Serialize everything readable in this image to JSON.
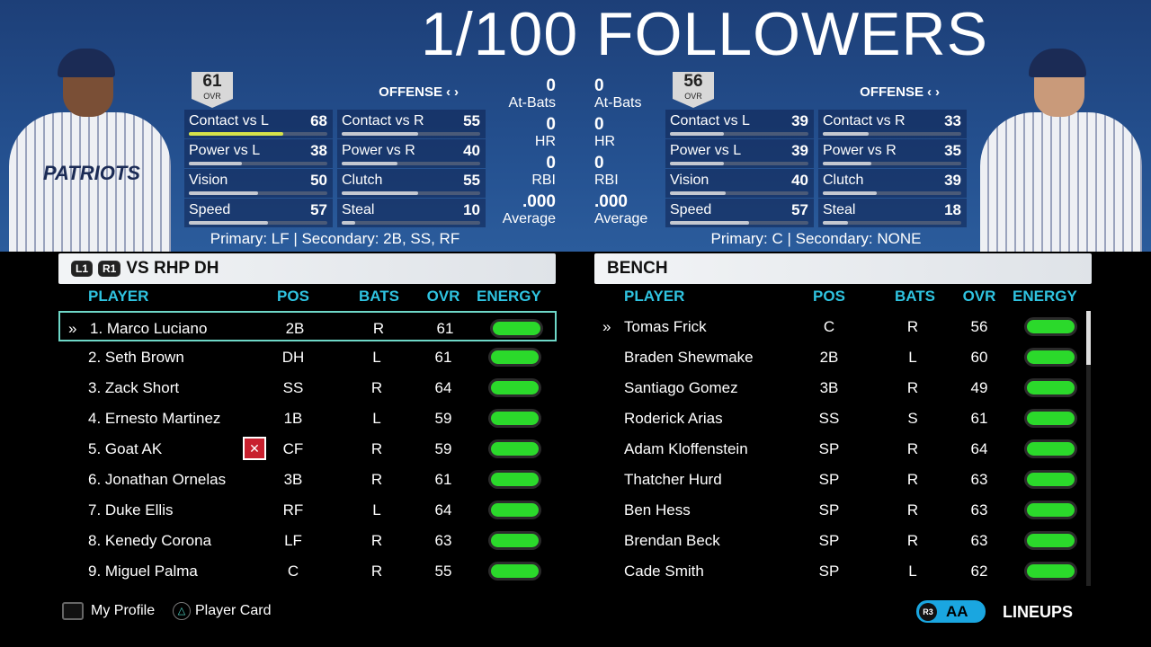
{
  "overlay_text": "1/100 FOLLOWERS",
  "left_player": {
    "ovr": "61",
    "ovr_label": "OVR",
    "mode": "OFFENSE",
    "nav_left": "‹",
    "nav_right": "›",
    "stats": [
      {
        "label": "Contact vs L",
        "value": 68
      },
      {
        "label": "Contact vs R",
        "value": 55
      },
      {
        "label": "Power vs L",
        "value": 38
      },
      {
        "label": "Power vs R",
        "value": 40
      },
      {
        "label": "Vision",
        "value": 50
      },
      {
        "label": "Clutch",
        "value": 55
      },
      {
        "label": "Speed",
        "value": 57
      },
      {
        "label": "Steal",
        "value": 10
      }
    ],
    "positions": "Primary: LF | Secondary: 2B, SS, RF",
    "season": {
      "at_bats": "0",
      "at_bats_label": "At-Bats",
      "hr": "0",
      "hr_label": "HR",
      "rbi": "0",
      "rbi_label": "RBI",
      "avg": ".000",
      "avg_label": "Average"
    }
  },
  "right_player": {
    "ovr": "56",
    "ovr_label": "OVR",
    "mode": "OFFENSE",
    "nav_left": "‹",
    "nav_right": "›",
    "stats": [
      {
        "label": "Contact vs L",
        "value": 39
      },
      {
        "label": "Contact vs R",
        "value": 33
      },
      {
        "label": "Power vs L",
        "value": 39
      },
      {
        "label": "Power vs R",
        "value": 35
      },
      {
        "label": "Vision",
        "value": 40
      },
      {
        "label": "Clutch",
        "value": 39
      },
      {
        "label": "Speed",
        "value": 57
      },
      {
        "label": "Steal",
        "value": 18
      }
    ],
    "positions": "Primary: C | Secondary: NONE",
    "season": {
      "at_bats": "0",
      "at_bats_label": "At-Bats",
      "hr": "0",
      "hr_label": "HR",
      "rbi": "0",
      "rbi_label": "RBI",
      "avg": ".000",
      "avg_label": "Average"
    }
  },
  "team_logo_text": "PATRIOTS",
  "lineup": {
    "l1": "L1",
    "r1": "R1",
    "title": "VS RHP DH",
    "columns": {
      "player": "PLAYER",
      "pos": "POS",
      "bats": "BATS",
      "ovr": "OVR",
      "energy": "ENERGY"
    },
    "selected_marker": "»",
    "rows": [
      {
        "name": "1. Marco Luciano",
        "pos": "2B",
        "bats": "R",
        "ovr": "61",
        "energy": 100
      },
      {
        "name": "2. Seth Brown",
        "pos": "DH",
        "bats": "L",
        "ovr": "61",
        "energy": 100
      },
      {
        "name": "3. Zack Short",
        "pos": "SS",
        "bats": "R",
        "ovr": "64",
        "energy": 100
      },
      {
        "name": "4. Ernesto Martinez",
        "pos": "1B",
        "bats": "L",
        "ovr": "59",
        "energy": 100
      },
      {
        "name": "5. Goat AK",
        "pos": "CF",
        "bats": "R",
        "ovr": "59",
        "energy": 100,
        "badge": "user-player-icon"
      },
      {
        "name": "6. Jonathan Ornelas",
        "pos": "3B",
        "bats": "R",
        "ovr": "61",
        "energy": 100
      },
      {
        "name": "7. Duke Ellis",
        "pos": "RF",
        "bats": "L",
        "ovr": "64",
        "energy": 100
      },
      {
        "name": "8. Kenedy Corona",
        "pos": "LF",
        "bats": "R",
        "ovr": "63",
        "energy": 100
      },
      {
        "name": "9. Miguel Palma",
        "pos": "C",
        "bats": "R",
        "ovr": "55",
        "energy": 100
      }
    ]
  },
  "bench": {
    "title": "BENCH",
    "columns": {
      "player": "PLAYER",
      "pos": "POS",
      "bats": "BATS",
      "ovr": "OVR",
      "energy": "ENERGY"
    },
    "selected_marker": "»",
    "rows": [
      {
        "name": "Tomas Frick",
        "pos": "C",
        "bats": "R",
        "ovr": "56",
        "energy": 100
      },
      {
        "name": "Braden Shewmake",
        "pos": "2B",
        "bats": "L",
        "ovr": "60",
        "energy": 100
      },
      {
        "name": "Santiago Gomez",
        "pos": "3B",
        "bats": "R",
        "ovr": "49",
        "energy": 100
      },
      {
        "name": "Roderick Arias",
        "pos": "SS",
        "bats": "S",
        "ovr": "61",
        "energy": 100
      },
      {
        "name": "Adam Kloffenstein",
        "pos": "SP",
        "bats": "R",
        "ovr": "64",
        "energy": 100
      },
      {
        "name": "Thatcher Hurd",
        "pos": "SP",
        "bats": "R",
        "ovr": "63",
        "energy": 100
      },
      {
        "name": "Ben Hess",
        "pos": "SP",
        "bats": "R",
        "ovr": "63",
        "energy": 100
      },
      {
        "name": "Brendan Beck",
        "pos": "SP",
        "bats": "R",
        "ovr": "63",
        "energy": 100
      },
      {
        "name": "Cade Smith",
        "pos": "SP",
        "bats": "L",
        "ovr": "62",
        "energy": 100
      }
    ]
  },
  "footer": {
    "my_profile": "My Profile",
    "player_card": "Player Card",
    "r3": "R3",
    "aa": "AA",
    "lineups": "LINEUPS"
  },
  "colors": {
    "accent": "#2fc3e0",
    "energy": "#2bd92b",
    "contact_highlight": "#d6e34a",
    "banner": "#24508f"
  }
}
